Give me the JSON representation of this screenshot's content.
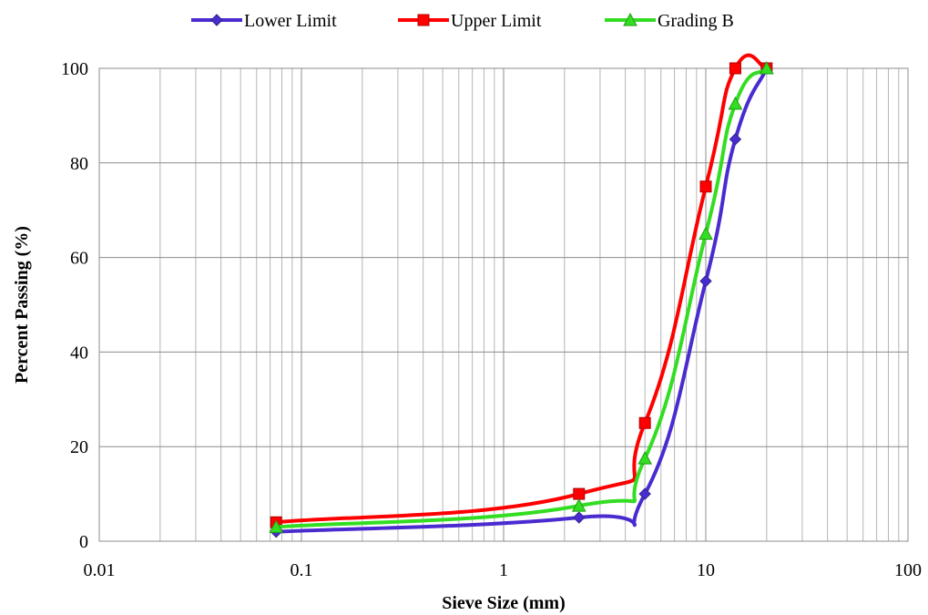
{
  "chart_data": {
    "type": "line",
    "xscale": "log",
    "xlabel": "Sieve Size (mm)",
    "ylabel": "Percent Passing (%)",
    "xlim": [
      0.01,
      100
    ],
    "ylim": [
      0,
      100
    ],
    "x_ticks": [
      "0.01",
      "0.1",
      "1",
      "10",
      "100"
    ],
    "y_ticks": [
      "0",
      "20",
      "40",
      "60",
      "80",
      "100"
    ],
    "grid": true,
    "legend_position": "top",
    "series": [
      {
        "name": "Lower Limit",
        "color": "#4a2bd0",
        "marker": "diamond",
        "x": [
          0.075,
          2.36,
          5,
          10,
          14,
          20
        ],
        "y": [
          2,
          5,
          10,
          55,
          85,
          100
        ]
      },
      {
        "name": "Upper Limit",
        "color": "#ff0000",
        "marker": "square",
        "x": [
          0.075,
          2.36,
          5,
          10,
          14,
          20
        ],
        "y": [
          4,
          10,
          25,
          75,
          100,
          100
        ]
      },
      {
        "name": "Grading B",
        "color": "#33dd22",
        "marker": "triangle",
        "x": [
          0.075,
          2.36,
          5,
          10,
          14,
          20
        ],
        "y": [
          3,
          7.5,
          17.5,
          65,
          92.5,
          100
        ]
      }
    ]
  }
}
